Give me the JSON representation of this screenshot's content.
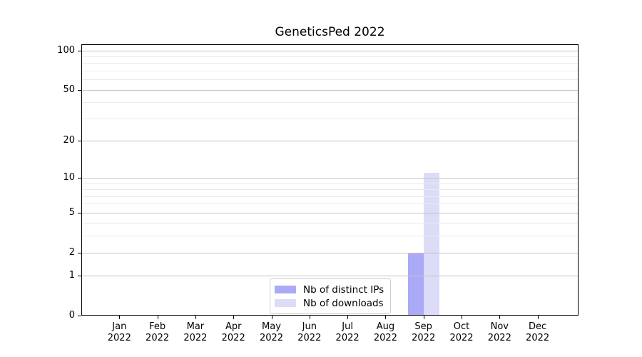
{
  "chart_data": {
    "type": "bar",
    "title": "GeneticsPed 2022",
    "categories": [
      "Jan",
      "Feb",
      "Mar",
      "Apr",
      "May",
      "Jun",
      "Jul",
      "Aug",
      "Sep",
      "Oct",
      "Nov",
      "Dec"
    ],
    "category_year": "2022",
    "series": [
      {
        "name": "Nb of distinct IPs",
        "color": "#aaaaf6",
        "values": [
          0,
          0,
          0,
          0,
          0,
          0,
          0,
          0,
          2,
          0,
          0,
          0
        ]
      },
      {
        "name": "Nb of downloads",
        "color": "#dcdcf8",
        "values": [
          0,
          0,
          0,
          0,
          0,
          0,
          0,
          0,
          11,
          0,
          0,
          0
        ]
      }
    ],
    "y_scale": "log1p",
    "y_ticks": [
      0,
      1,
      2,
      5,
      10,
      20,
      50,
      100
    ],
    "y_minor_gridlines": [
      3,
      4,
      6,
      7,
      8,
      9,
      30,
      40,
      60,
      70,
      80,
      90
    ],
    "ylim": [
      0,
      113
    ],
    "grid": "horizontal",
    "legend_position": "lower center"
  }
}
